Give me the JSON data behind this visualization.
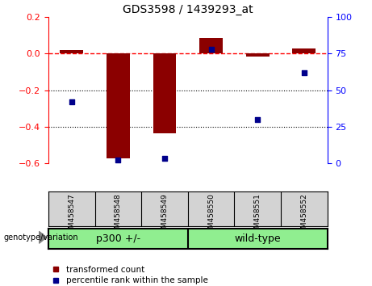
{
  "title": "GDS3598 / 1439293_at",
  "samples": [
    "GSM458547",
    "GSM458548",
    "GSM458549",
    "GSM458550",
    "GSM458551",
    "GSM458552"
  ],
  "red_values": [
    0.02,
    -0.575,
    -0.435,
    0.085,
    -0.018,
    0.03
  ],
  "blue_values_pct": [
    42,
    2,
    3,
    78,
    30,
    62
  ],
  "group1_label": "p300 +/-",
  "group1_indices": [
    0,
    1,
    2
  ],
  "group2_label": "wild-type",
  "group2_indices": [
    3,
    4,
    5
  ],
  "group_color": "#90EE90",
  "group_label": "genotype/variation",
  "ylim_left": [
    -0.6,
    0.2
  ],
  "ylim_right": [
    0,
    100
  ],
  "yticks_left": [
    -0.6,
    -0.4,
    -0.2,
    0.0,
    0.2
  ],
  "yticks_right": [
    0,
    25,
    50,
    75,
    100
  ],
  "hline_y": 0.0,
  "dotted_lines": [
    -0.2,
    -0.4
  ],
  "legend_red_label": "transformed count",
  "legend_blue_label": "percentile rank within the sample",
  "bar_width": 0.5,
  "bar_color": "#8B0000",
  "dot_color": "#00008B",
  "sample_bg": "#d3d3d3",
  "plot_bg": "#ffffff"
}
